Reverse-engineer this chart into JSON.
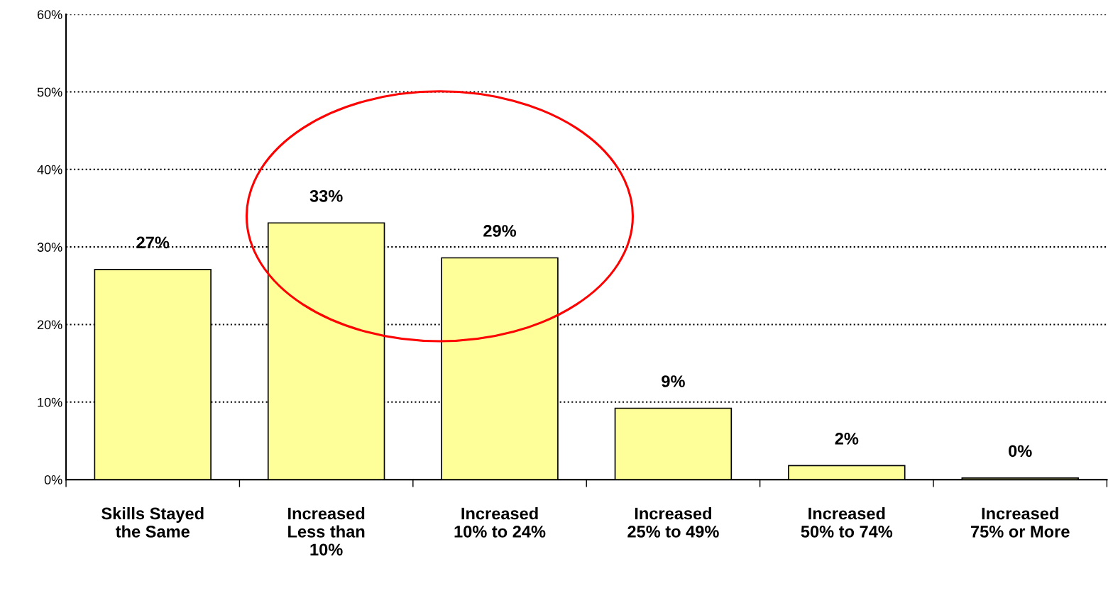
{
  "chart_data": {
    "type": "bar",
    "categories": [
      "Skills Stayed\nthe Same",
      "Increased\nLess than\n10%",
      "Increased\n10% to 24%",
      "Increased\n25% to 49%",
      "Increased\n50% to 74%",
      "Increased\n75% or More"
    ],
    "values": [
      27.1,
      33.1,
      28.6,
      9.2,
      1.8,
      0.2
    ],
    "value_labels": [
      "27%",
      "33%",
      "29%",
      "9%",
      "2%",
      "0%"
    ],
    "color": "#ffff99",
    "ylim": [
      0,
      60
    ],
    "yticks": [
      {
        "value": 0,
        "label": "0%"
      },
      {
        "value": 10,
        "label": "10%"
      },
      {
        "value": 20,
        "label": "20%"
      },
      {
        "value": 30,
        "label": "30%"
      },
      {
        "value": 40,
        "label": "40%"
      },
      {
        "value": 50,
        "label": "50%"
      },
      {
        "value": 60,
        "label": "60%"
      }
    ],
    "grid": "y",
    "line_style": "dotted",
    "legend": false
  }
}
